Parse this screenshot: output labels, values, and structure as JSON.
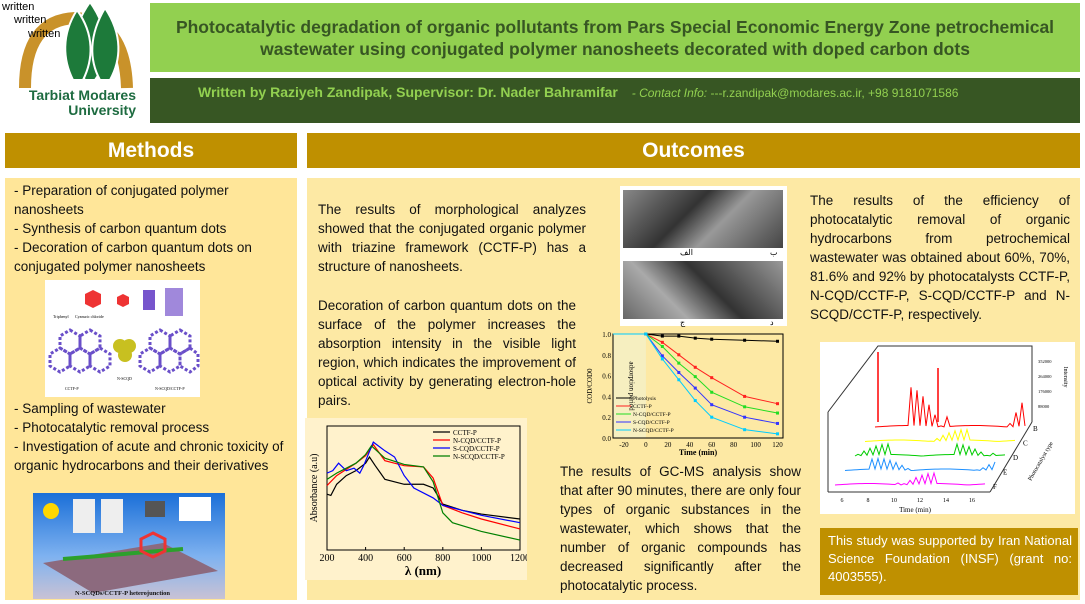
{
  "logo": {
    "watermark": [
      "written",
      "written",
      "written"
    ],
    "name_line1": "Tarbiat Modares",
    "name_line2": "University"
  },
  "header": {
    "title": "Photocatalytic degradation of organic pollutants from Pars Special Economic Energy Zone petrochemical wastewater using conjugated polymer nanosheets decorated with doped carbon dots",
    "authors": "Written by Raziyeh Zandipak, Supervisor: Dr. Nader Bahramifar",
    "contact_label": "- Contact Info:",
    "contact": " ---r.zandipak@modares.ac.ir, +98 9181071586"
  },
  "methods": {
    "heading": "Methods",
    "items_top": [
      "- Preparation of conjugated polymer nanosheets",
      "- Synthesis of carbon quantum dots",
      "- Decoration of carbon quantum dots on conjugated polymer nanosheets"
    ],
    "items_bottom": [
      "- Sampling of wastewater",
      "- Photocatalytic removal process",
      "- Investigation of acute and chronic toxicity of organic hydrocarbons and their derivatives"
    ],
    "scheme_labels": [
      "Triphenyl",
      "Cyanuric chloride",
      "CCTF-P",
      "N-SCQD",
      "N-SCQD/CCTF-P"
    ],
    "heterojunction_label": "N-SCQDs/CCTF-P heterojunction"
  },
  "outcomes": {
    "heading": "Outcomes",
    "p1": "The results of morphological analyzes showed that the conjugated organic polymer with triazine framework (CCTF-P) has a structure of nanosheets.",
    "p2": "Decoration of carbon quantum dots on the surface of the polymer increases the absorption intensity in the visible light region, which indicates the improvement of optical activity by generating electron-hole pairs.",
    "p3": "The results of GC-MS analysis show that after 90 minutes, there are only four types of organic substances in the wastewater, which shows that the number of organic compounds has decreased significantly after the photocatalytic process.",
    "p4": "The results of the efficiency of photocatalytic removal of organic hydrocarbons from petrochemical wastewater was obtained about 60%, 70%, 81.6% and 92% by photocatalysts CCTF-P, N-CQD/CCTF-P, S-CQD/CCTF-P and N- SCQD/CCTF-P, respectively.",
    "funding": "This study was supported by Iran National Science Foundation (INSF) (grant no: 4003555).",
    "sem_labels": [
      "الف",
      "ب",
      "ج",
      "د"
    ]
  },
  "chart_data": [
    {
      "type": "line",
      "xlabel": "λ (nm)",
      "ylabel": "Absorbance (a.u)",
      "xlim": [
        200,
        1200
      ],
      "xticks": [
        200,
        400,
        600,
        800,
        1000,
        1200
      ],
      "legend": "top-right",
      "series": [
        {
          "name": "CCTF-P",
          "color": "#000000",
          "x": [
            200,
            220,
            250,
            300,
            350,
            400,
            420,
            450,
            500,
            600,
            700,
            750,
            800,
            900,
            1000,
            1200
          ],
          "y": [
            0.45,
            0.44,
            0.53,
            0.6,
            0.64,
            0.7,
            0.75,
            0.68,
            0.57,
            0.53,
            0.53,
            0.5,
            0.37,
            0.32,
            0.29,
            0.25
          ]
        },
        {
          "name": "N-CQD/CCTF-P",
          "color": "#ff0000",
          "x": [
            200,
            250,
            300,
            350,
            400,
            440,
            500,
            600,
            700,
            750,
            800,
            900,
            1000,
            1200
          ],
          "y": [
            0.52,
            0.6,
            0.65,
            0.7,
            0.76,
            0.85,
            0.72,
            0.68,
            0.67,
            0.58,
            0.36,
            0.3,
            0.25,
            0.17
          ]
        },
        {
          "name": "S-CQD/CCTF-P",
          "color": "#0000ff",
          "x": [
            200,
            230,
            260,
            300,
            340,
            370,
            390,
            440,
            500,
            550,
            600,
            650,
            750,
            800,
            900,
            1000,
            1200
          ],
          "y": [
            0.62,
            0.64,
            0.7,
            0.64,
            0.66,
            0.62,
            0.68,
            0.87,
            0.8,
            0.75,
            0.6,
            0.5,
            0.42,
            0.36,
            0.32,
            0.28,
            0.22
          ]
        },
        {
          "name": "N-SCQD/CCTF-P",
          "color": "#008000",
          "x": [
            200,
            250,
            300,
            350,
            400,
            430,
            500,
            600,
            700,
            750,
            800,
            850,
            1000,
            1200
          ],
          "y": [
            0.57,
            0.62,
            0.66,
            0.7,
            0.77,
            0.84,
            0.74,
            0.69,
            0.67,
            0.55,
            0.3,
            0.22,
            0.15,
            0.08
          ]
        }
      ]
    },
    {
      "type": "line",
      "xlabel": "Time (min)",
      "ylabel": "COD/COD0",
      "xlim": [
        -30,
        125
      ],
      "ylim": [
        0,
        1.0
      ],
      "xticks": [
        -20,
        0,
        20,
        40,
        60,
        80,
        100,
        120
      ],
      "yticks": [
        0,
        0.2,
        0.4,
        0.6,
        0.8,
        1.0
      ],
      "annotation": "adsorption period",
      "legend": "bottom-left",
      "x": [
        -30,
        0,
        15,
        30,
        45,
        60,
        90,
        120
      ],
      "series": [
        {
          "name": "Photolysis",
          "color": "#000000",
          "y": [
            1,
            1,
            0.98,
            0.98,
            0.96,
            0.95,
            0.94,
            0.93
          ]
        },
        {
          "name": "CCTF-P",
          "color": "#ff2020",
          "y": [
            1,
            1,
            0.92,
            0.8,
            0.68,
            0.58,
            0.4,
            0.33
          ]
        },
        {
          "name": "N-CQD/CCTF-P",
          "color": "#22dd22",
          "y": [
            1,
            1,
            0.88,
            0.72,
            0.59,
            0.44,
            0.3,
            0.24
          ]
        },
        {
          "name": "S-CQD/CCTF-P",
          "color": "#3333ff",
          "y": [
            1,
            1,
            0.79,
            0.63,
            0.48,
            0.32,
            0.2,
            0.14
          ]
        },
        {
          "name": "N-SCQD/CCTF-P",
          "color": "#00ccff",
          "y": [
            1,
            1,
            0.76,
            0.56,
            0.36,
            0.2,
            0.08,
            0.04
          ]
        }
      ]
    },
    {
      "type": "line",
      "xlabel": "Time (min)",
      "ylabel": "Intensity",
      "zlabel": "Photocatalyst type",
      "xticks": [
        6,
        8,
        10,
        12,
        14,
        16
      ],
      "yticks": [
        88000,
        176000,
        264000,
        352000
      ],
      "series": [
        {
          "name": "B",
          "color": "#ff0000"
        },
        {
          "name": "C",
          "color": "#ffff00"
        },
        {
          "name": "D",
          "color": "#00cc00"
        },
        {
          "name": "E",
          "color": "#1e90ff"
        },
        {
          "name": "F",
          "color": "#ff00ff"
        }
      ]
    }
  ]
}
